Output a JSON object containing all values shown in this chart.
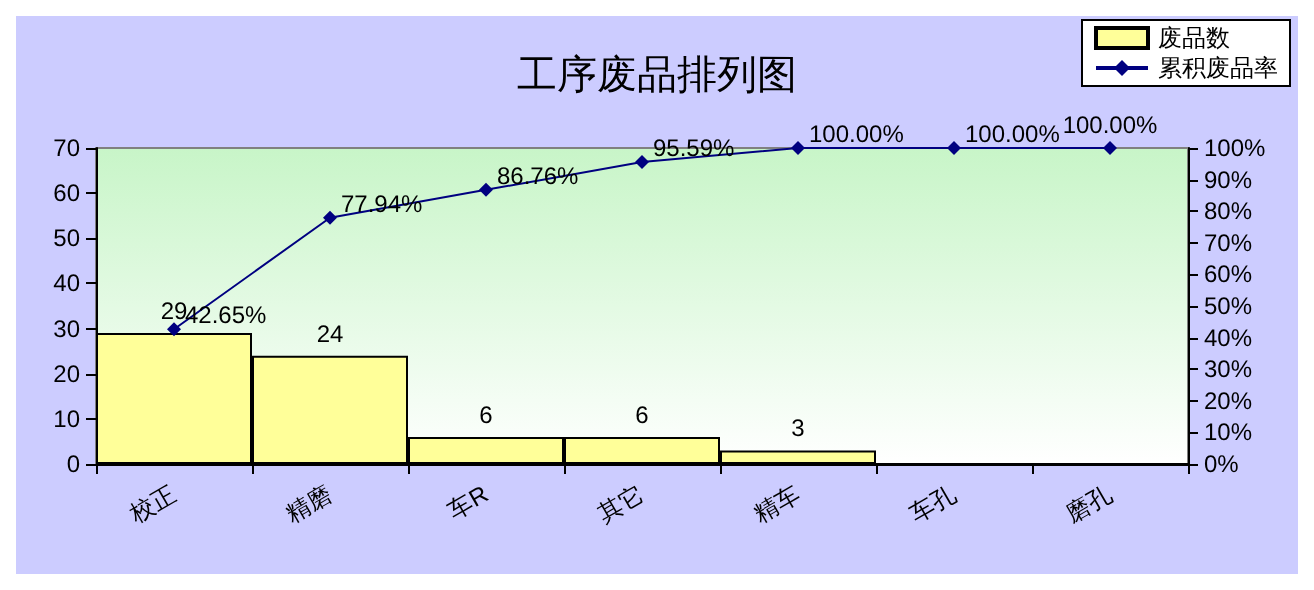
{
  "chart_data": {
    "type": "bar",
    "title": "工序废品排列图",
    "categories": [
      "校正",
      "精磨",
      "车R",
      "其它",
      "精车",
      "车孔",
      "磨孔"
    ],
    "series": [
      {
        "name": "废品数",
        "color": "#ffff99",
        "values": [
          29,
          24,
          6,
          6,
          3,
          0,
          0
        ],
        "value_labels": [
          "29",
          "24",
          "6",
          "6",
          "3",
          null,
          null
        ]
      },
      {
        "name": "累积废品率",
        "type": "line",
        "axis": "y2",
        "color": "#000080",
        "marker": "diamond",
        "values": [
          42.65,
          77.94,
          86.76,
          95.59,
          100,
          100,
          100
        ],
        "value_labels": [
          "42.65%",
          "77.94%",
          "86.76%",
          "95.59%",
          "100.00%",
          "100.00%",
          "100.00%"
        ]
      }
    ],
    "ylim": [
      0,
      70
    ],
    "yticks": [
      0,
      10,
      20,
      30,
      40,
      50,
      60,
      70
    ],
    "y2lim": [
      0,
      100
    ],
    "y2ticks": [
      {
        "value": 0,
        "label": "0%"
      },
      {
        "value": 10,
        "label": "10%"
      },
      {
        "value": 20,
        "label": "20%"
      },
      {
        "value": 30,
        "label": "30%"
      },
      {
        "value": 40,
        "label": "40%"
      },
      {
        "value": 50,
        "label": "50%"
      },
      {
        "value": 60,
        "label": "60%"
      },
      {
        "value": 70,
        "label": "70%"
      },
      {
        "value": 80,
        "label": "80%"
      },
      {
        "value": 90,
        "label": "90%"
      },
      {
        "value": 100,
        "label": "100%"
      }
    ],
    "grid": false,
    "legend": "top right"
  }
}
